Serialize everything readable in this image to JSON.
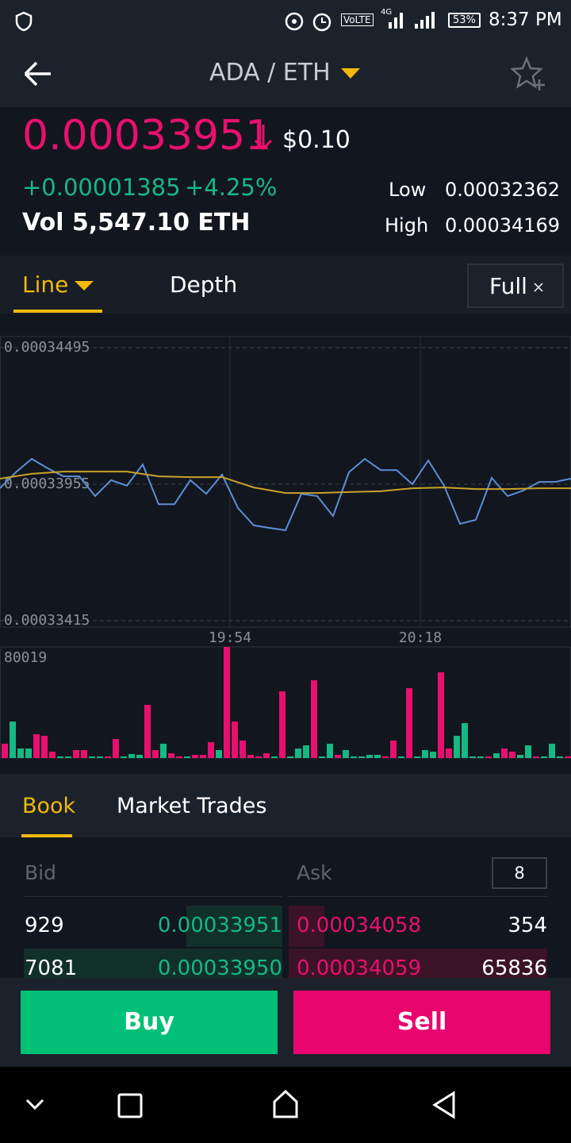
{
  "status_bar": {
    "network": "VoLTE",
    "signal": "4G",
    "battery": "53%",
    "time": "8:37 PM"
  },
  "header": {
    "pair": "ADA / ETH"
  },
  "ticker": {
    "price": "0.00033951",
    "price_usd": "$0.10",
    "change": "+0.00001385",
    "change_percent": "+4.25%",
    "volume": "Vol 5,547.10 ETH",
    "low_label": "Low",
    "low": "0.00032362",
    "high_label": "High",
    "high": "0.00034169"
  },
  "chart_tabs": [
    "Line",
    "Depth"
  ],
  "full_button": "Full",
  "chart_data": [
    {
      "type": "line",
      "xlim": [
        0,
        72
      ],
      "xticks": [
        {
          "value": 29,
          "label": "19:54"
        },
        {
          "value": 53,
          "label": "20:18"
        }
      ],
      "ylim": [
        0.00033415,
        0.00034495
      ],
      "yticks": [
        0.00033415,
        0.00033955,
        0.00034495
      ],
      "series": [
        {
          "color": "#5b8fd8",
          "x": [
            0,
            2,
            4,
            6,
            8,
            10,
            12,
            14,
            16,
            18,
            20,
            22,
            24,
            26,
            28,
            30,
            32,
            34,
            36,
            38,
            40,
            42,
            44,
            46,
            48,
            50,
            52,
            54,
            56,
            58,
            60,
            62,
            64,
            66,
            68,
            70,
            72
          ],
          "values": [
            0.00033939,
            0.00034002,
            0.00034055,
            0.00034018,
            0.00033986,
            0.00033986,
            0.00033908,
            0.00033971,
            0.00033949,
            0.00034033,
            0.00033876,
            0.00033876,
            0.00033971,
            0.00033917,
            0.00033993,
            0.00033861,
            0.00033792,
            0.00033782,
            0.00033773,
            0.00033917,
            0.00033908,
            0.00033829,
            0.00034002,
            0.00034055,
            0.00034011,
            0.00034011,
            0.00033955,
            0.00034049,
            0.00033949,
            0.00033798,
            0.00033814,
            0.0003398,
            0.00033908,
            0.0003393,
            0.00033964,
            0.00033964,
            0.00033977
          ]
        },
        {
          "color": "#c9a227",
          "x": [
            0,
            4,
            8,
            12,
            16,
            20,
            24,
            28,
            32,
            36,
            40,
            44,
            48,
            52,
            56,
            60,
            64,
            68,
            72
          ],
          "values": [
            0.00033977,
            0.00033996,
            0.00034005,
            0.00034005,
            0.00034005,
            0.00033986,
            0.00033983,
            0.00033983,
            0.00033942,
            0.0003392,
            0.0003392,
            0.00033924,
            0.00033927,
            0.00033939,
            0.00033942,
            0.00033936,
            0.00033936,
            0.00033939,
            0.00033939
          ]
        }
      ]
    },
    {
      "type": "bar",
      "ylim": [
        0,
        80019
      ],
      "yticks": [
        80019
      ],
      "values": [
        10289,
        26292,
        6859,
        6859,
        17147,
        16004,
        4573,
        1143,
        1143,
        5716,
        5716,
        1143,
        1143,
        1143,
        13718,
        1143,
        2858,
        2286,
        38295,
        5716,
        10289,
        3429,
        1143,
        1143,
        2286,
        2286,
        11431,
        5716,
        80019,
        26292,
        12574,
        2286,
        1143,
        3429,
        1143,
        48011,
        1143,
        6859,
        9145,
        56013,
        1143,
        10289,
        2286,
        5716,
        1143,
        1143,
        2286,
        2286,
        1143,
        12574,
        1143,
        50298,
        1143,
        5716,
        4573,
        61729,
        6859,
        16004,
        25149,
        1143,
        1143,
        1143,
        3429,
        6859,
        4573,
        2286,
        9145,
        1143,
        1143,
        10289,
        1143,
        1143
      ],
      "colors": [
        "#e8106e",
        "#16b884",
        "#16b884",
        "#16b884",
        "#e8106e",
        "#e8106e",
        "#e8106e",
        "#16b884",
        "#16b884",
        "#e8106e",
        "#e8106e",
        "#16b884",
        "#16b884",
        "#e8106e",
        "#e8106e",
        "#16b884",
        "#16b884",
        "#16b884",
        "#e8106e",
        "#e8106e",
        "#16b884",
        "#e8106e",
        "#e8106e",
        "#16b884",
        "#e8106e",
        "#e8106e",
        "#e8106e",
        "#16b884",
        "#e8106e",
        "#e8106e",
        "#e8106e",
        "#e8106e",
        "#e8106e",
        "#e8106e",
        "#16b884",
        "#e8106e",
        "#16b884",
        "#16b884",
        "#16b884",
        "#e8106e",
        "#16b884",
        "#16b884",
        "#e8106e",
        "#16b884",
        "#16b884",
        "#16b884",
        "#16b884",
        "#16b884",
        "#e8106e",
        "#e8106e",
        "#16b884",
        "#e8106e",
        "#16b884",
        "#16b884",
        "#16b884",
        "#e8106e",
        "#e8106e",
        "#16b884",
        "#16b884",
        "#16b884",
        "#16b884",
        "#e8106e",
        "#16b884",
        "#e8106e",
        "#e8106e",
        "#16b884",
        "#16b884",
        "#e8106e",
        "#16b884",
        "#16b884",
        "#16b884",
        "#e8106e"
      ]
    }
  ],
  "book_tabs": [
    "Book",
    "Market Trades"
  ],
  "order_book": {
    "headers": [
      "Bid",
      "Ask"
    ],
    "depth": "8",
    "rows": [
      [
        "929",
        "0.00033951",
        "0.00034058",
        "354"
      ],
      [
        "7081",
        "0.00033950",
        "0.00034059",
        "65836"
      ]
    ]
  },
  "actions": {
    "buy": "Buy",
    "sell": "Sell"
  }
}
